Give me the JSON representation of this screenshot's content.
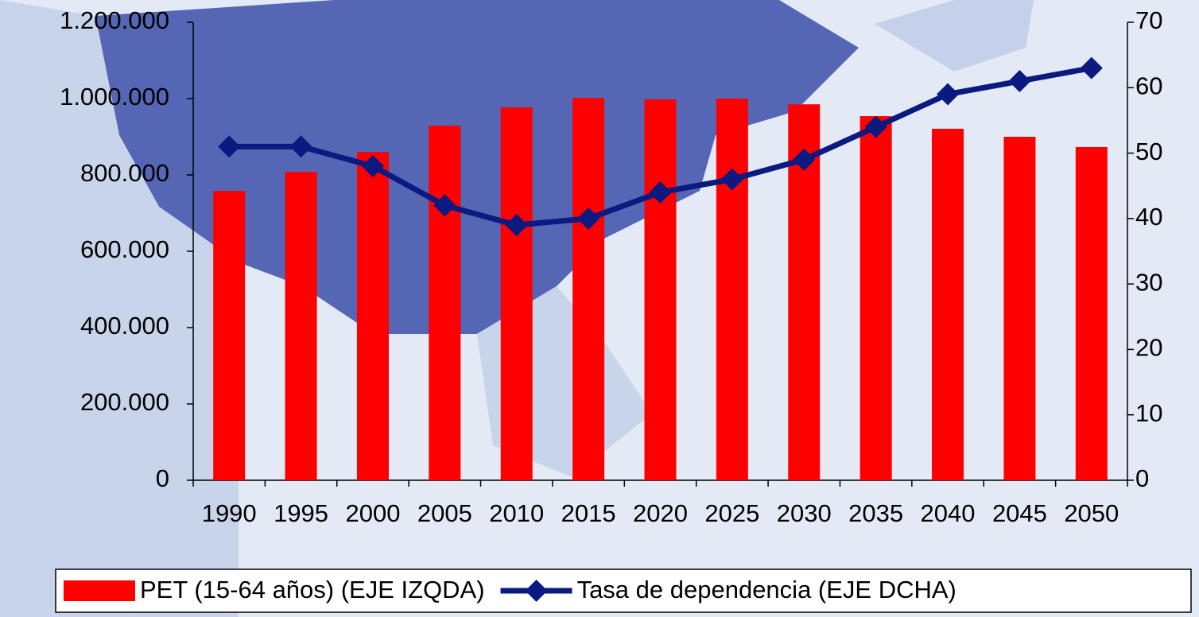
{
  "chart_data": {
    "type": "bar",
    "categories": [
      "1990",
      "1995",
      "2000",
      "2005",
      "2010",
      "2015",
      "2020",
      "2025",
      "2030",
      "2035",
      "2040",
      "2045",
      "2050"
    ],
    "series": [
      {
        "name": "PET (15-64 años) (EJE IZQDA)",
        "color": "#ff0000",
        "type": "bar",
        "values": [
          758000,
          808000,
          860000,
          929000,
          977000,
          1002000,
          998000,
          1000000,
          985000,
          954000,
          921000,
          900000,
          873000
        ]
      },
      {
        "name": "Tasa de dependencia (EJE DCHA)",
        "color": "#0a1a80",
        "type": "line",
        "axis": "y2",
        "values": [
          51,
          51,
          48,
          42,
          39,
          40,
          44,
          46,
          49,
          54,
          59,
          61,
          63
        ]
      }
    ],
    "ylim": [
      0,
      1200000
    ],
    "yticks": [
      0,
      {
        "value": 200000,
        "label": "200.000"
      },
      {
        "value": 400000,
        "label": "400.000"
      },
      {
        "value": 600000,
        "label": "600.000"
      },
      {
        "value": 800000,
        "label": "800.000"
      },
      {
        "value": 1000000,
        "label": "1.000.000"
      },
      {
        "value": 1200000,
        "label": "1.200.000"
      }
    ],
    "y2lim": [
      0,
      70
    ],
    "y2ticks": [
      0,
      10,
      20,
      30,
      40,
      50,
      60,
      70
    ],
    "legend": "bottom"
  }
}
